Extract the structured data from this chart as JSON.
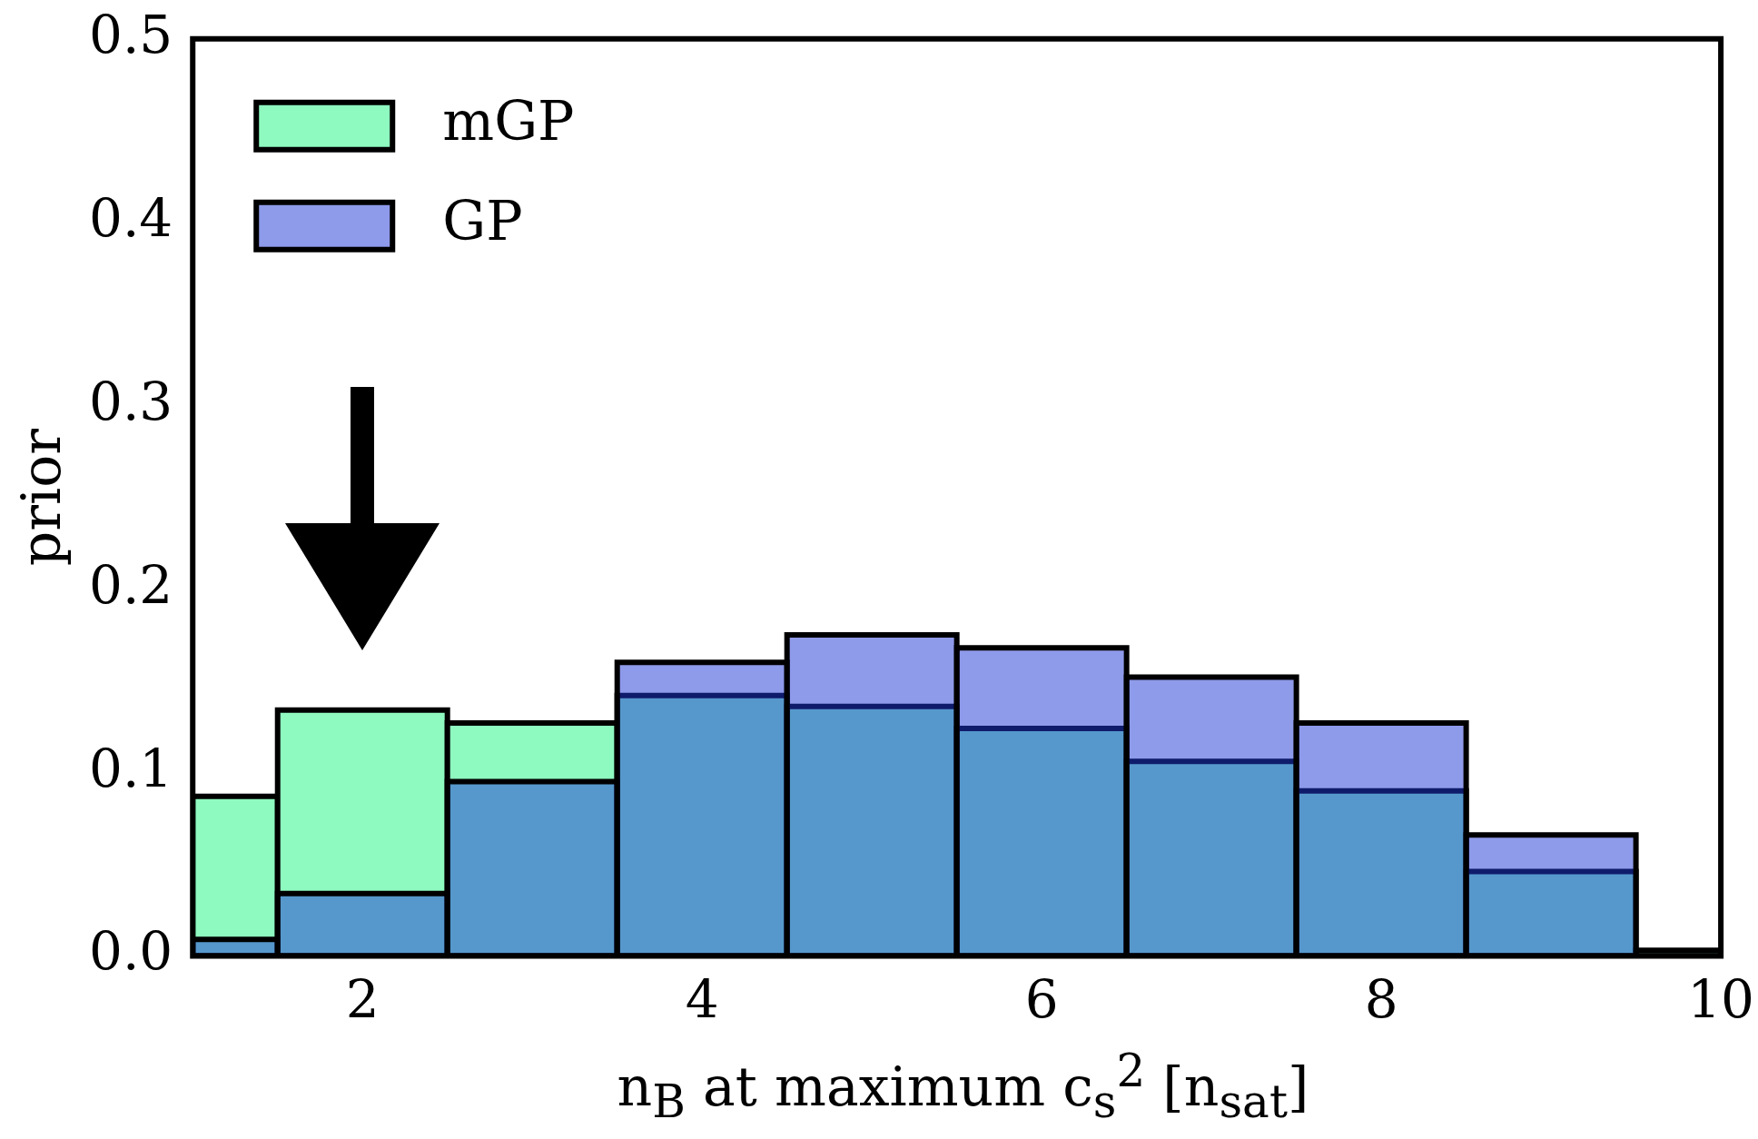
{
  "chart_data": {
    "type": "histogram",
    "xlabel": "n$_{B}$ at maximum c$_{s}$$^{2}$ [n$_{sat}$]",
    "ylabel": "prior",
    "bins": [
      1,
      1.5,
      2.5,
      3.5,
      4.5,
      5.5,
      6.5,
      7.5,
      8.5,
      9.5,
      10
    ],
    "xlim": [
      1,
      10
    ],
    "ylim": [
      0,
      0.5
    ],
    "xticks": [
      2,
      4,
      6,
      8,
      10
    ],
    "yticks": [
      {
        "value": 0,
        "label": "0.0"
      },
      {
        "value": 0.1,
        "label": "0.1"
      },
      {
        "value": 0.2,
        "label": "0.2"
      },
      {
        "value": 0.3,
        "label": "0.3"
      },
      {
        "value": 0.4,
        "label": "0.4"
      },
      {
        "value": 0.5,
        "label": "0.5"
      }
    ],
    "legend": "top left",
    "grid": false,
    "series": [
      {
        "name": "mGP",
        "color": "#8efac0",
        "values": [
          0.087,
          0.134,
          0.127,
          0.142,
          0.136,
          0.124,
          0.106,
          0.09,
          0.046,
          0.003
        ]
      },
      {
        "name": "GP",
        "color": "#8e9aea",
        "values": [
          0.009,
          0.034,
          0.095,
          0.16,
          0.175,
          0.168,
          0.152,
          0.127,
          0.066,
          null
        ]
      }
    ]
  }
}
